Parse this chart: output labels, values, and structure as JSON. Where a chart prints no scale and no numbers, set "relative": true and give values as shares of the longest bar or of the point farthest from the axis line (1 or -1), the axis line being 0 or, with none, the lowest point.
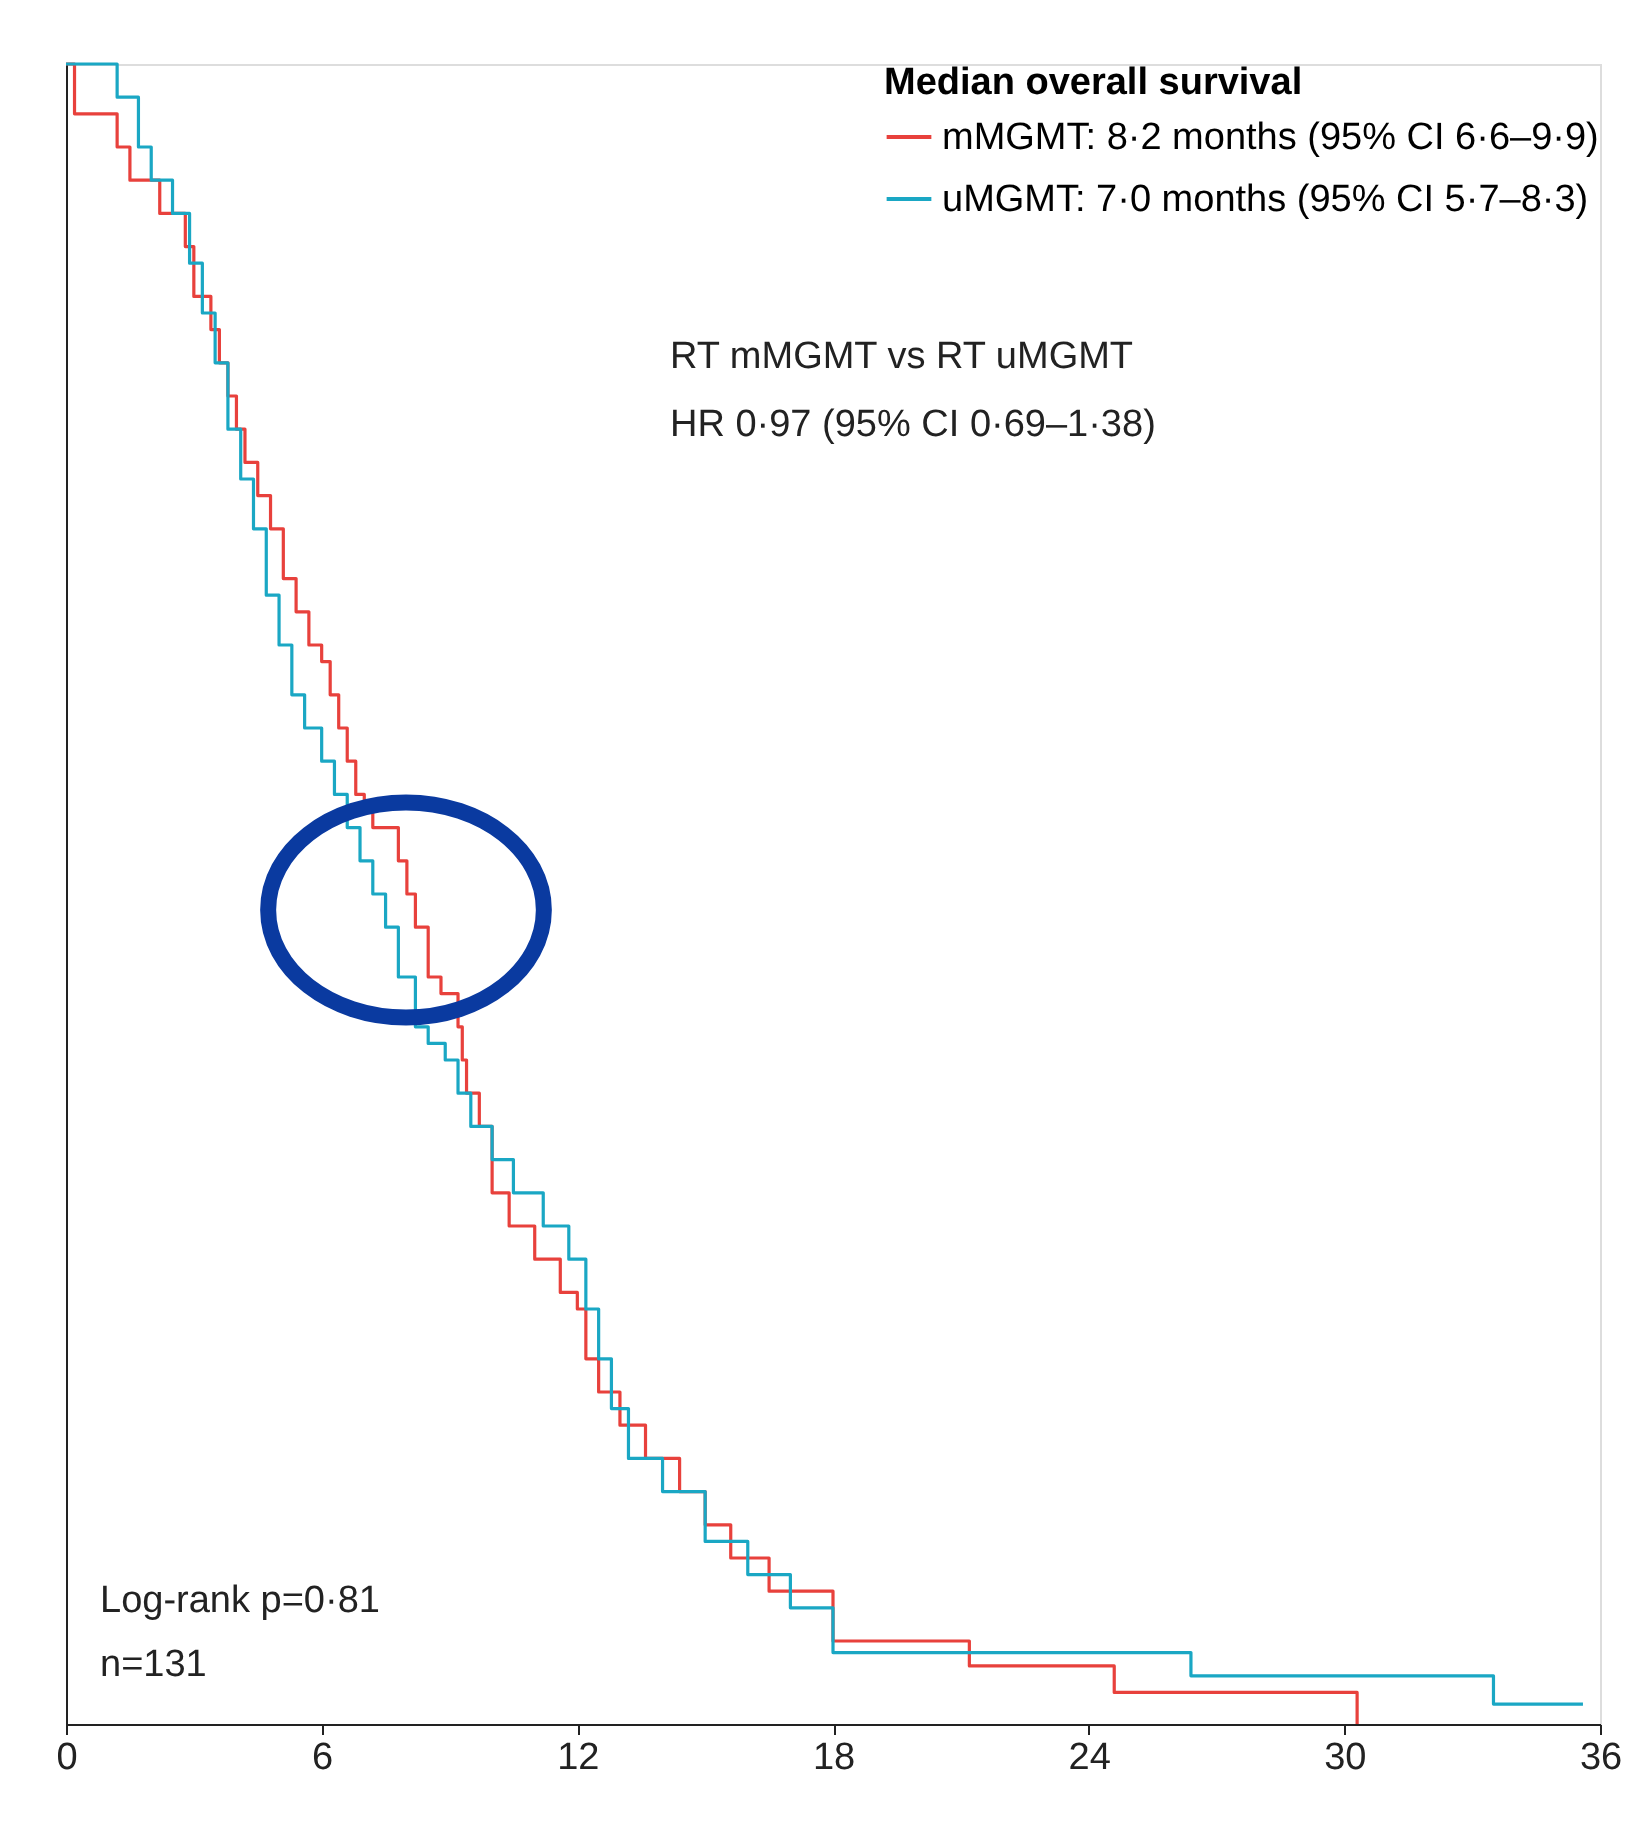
{
  "chart_data": {
    "type": "step",
    "relative": true,
    "legend_title": "Median overall survival",
    "legend": "top right",
    "line_style": "solid",
    "marker": "none",
    "grid": false,
    "xlim": [
      0,
      36
    ],
    "xticks": [
      0,
      6,
      12,
      18,
      24,
      30,
      36
    ],
    "series": [
      {
        "name": "mMGMT: 8·2 months (95% CI 6·6–9·9)",
        "color": "#e8413c",
        "x": [
          0,
          0.2,
          1.2,
          1.5,
          2.2,
          2.8,
          3.0,
          3.4,
          3.6,
          3.8,
          4.0,
          4.2,
          4.5,
          4.8,
          5.1,
          5.4,
          5.7,
          6.0,
          6.2,
          6.4,
          6.6,
          6.8,
          7.0,
          7.2,
          7.8,
          8.0,
          8.2,
          8.5,
          8.8,
          9.2,
          9.3,
          9.4,
          9.7,
          10.0,
          10.4,
          11.0,
          11.6,
          12.0,
          12.2,
          12.5,
          13.0,
          13.6,
          14.4,
          15.0,
          15.6,
          16.5,
          18.0,
          21.2,
          24.6,
          30.3
        ],
        "values": [
          1.0,
          0.97,
          0.95,
          0.93,
          0.91,
          0.89,
          0.86,
          0.84,
          0.82,
          0.8,
          0.78,
          0.76,
          0.74,
          0.72,
          0.69,
          0.67,
          0.65,
          0.64,
          0.62,
          0.6,
          0.58,
          0.56,
          0.55,
          0.54,
          0.52,
          0.5,
          0.48,
          0.45,
          0.44,
          0.42,
          0.4,
          0.38,
          0.36,
          0.32,
          0.3,
          0.28,
          0.26,
          0.25,
          0.22,
          0.2,
          0.18,
          0.16,
          0.14,
          0.12,
          0.1,
          0.08,
          0.05,
          0.035,
          0.019,
          0.0
        ]
      },
      {
        "name": "uMGMT: 7·0 months (95% CI 5·7–8·3)",
        "color": "#1aa7c4",
        "x": [
          0,
          1.2,
          1.7,
          2.0,
          2.5,
          2.9,
          3.2,
          3.5,
          3.8,
          4.1,
          4.4,
          4.7,
          5.0,
          5.3,
          5.6,
          6.0,
          6.3,
          6.6,
          6.9,
          7.2,
          7.5,
          7.8,
          8.2,
          8.5,
          8.9,
          9.2,
          9.5,
          10.0,
          10.5,
          11.2,
          11.8,
          12.2,
          12.5,
          12.8,
          13.2,
          14.0,
          15.0,
          16.0,
          17.0,
          18.0,
          26.4,
          33.5,
          35.6
        ],
        "values": [
          1.0,
          0.98,
          0.95,
          0.93,
          0.91,
          0.88,
          0.85,
          0.82,
          0.78,
          0.75,
          0.72,
          0.68,
          0.65,
          0.62,
          0.6,
          0.58,
          0.56,
          0.54,
          0.52,
          0.5,
          0.48,
          0.45,
          0.42,
          0.41,
          0.4,
          0.38,
          0.36,
          0.34,
          0.32,
          0.3,
          0.28,
          0.25,
          0.22,
          0.19,
          0.16,
          0.14,
          0.11,
          0.09,
          0.07,
          0.043,
          0.029,
          0.012,
          0.012
        ]
      }
    ],
    "annotations": [
      "RT mMGMT vs RT uMGMT",
      "HR 0·97 (95% CI 0·69–1·38)",
      "Log-rank p=0·81",
      "n=131"
    ]
  }
}
